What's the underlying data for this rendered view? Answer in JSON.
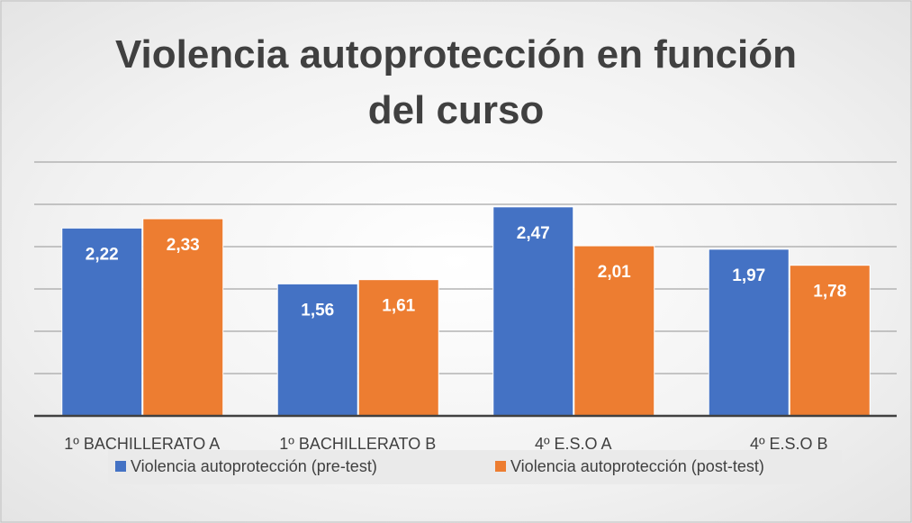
{
  "chart_data": {
    "type": "bar",
    "title": "Violencia autoprotección en función del curso",
    "categories": [
      "1º BACHILLERATO A",
      "1º BACHILLERATO B",
      "4º E.S.O A",
      "4º E.S.O B"
    ],
    "series": [
      {
        "name": "Violencia autoprotección (pre-test)",
        "color": "#4472c4",
        "values": [
          2.22,
          1.56,
          2.47,
          1.97
        ],
        "value_labels": [
          "2,22",
          "1,56",
          "2,47",
          "1,97"
        ]
      },
      {
        "name": "Violencia autoprotección (post-test)",
        "color": "#ed7d31",
        "values": [
          2.33,
          1.61,
          2.01,
          1.78
        ],
        "value_labels": [
          "2,33",
          "1,61",
          "2,01",
          "1,78"
        ]
      }
    ],
    "ylim": [
      0,
      3
    ],
    "yticks": [
      0,
      0.5,
      1,
      1.5,
      2,
      2.5,
      3
    ],
    "grid": true,
    "legend": "bottom"
  }
}
